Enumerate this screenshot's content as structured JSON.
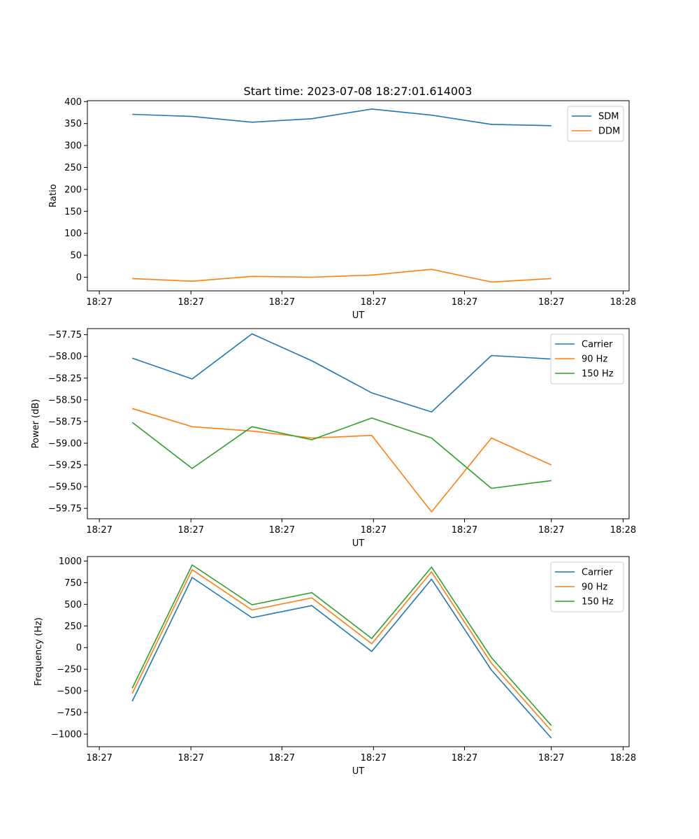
{
  "figure": {
    "title": "Start time: 2023-07-08 18:27:01.614003"
  },
  "colors": {
    "blue": "#1f77b4",
    "orange": "#ff7f0e",
    "green": "#2ca02c"
  },
  "chart_data": [
    {
      "type": "line",
      "title": "Start time: 2023-07-08 18:27:01.614003",
      "xlabel": "UT",
      "ylabel": "Ratio",
      "x": [
        1,
        2,
        3,
        4,
        5,
        6,
        7,
        8
      ],
      "xlim": [
        0.25,
        9.3
      ],
      "x_ticks": [
        0.45,
        1.98,
        3.5,
        5.03,
        6.55,
        8.0,
        9.2
      ],
      "x_tick_labels": [
        "18:27",
        "18:27",
        "18:27",
        "18:27",
        "18:27",
        "18:27",
        "18:28"
      ],
      "ylim": [
        -31,
        402
      ],
      "y_ticks": [
        0,
        50,
        100,
        150,
        200,
        250,
        300,
        350,
        400
      ],
      "y_tick_labels": [
        "0",
        "50",
        "100",
        "150",
        "200",
        "250",
        "300",
        "350",
        "400"
      ],
      "legend_position": "upper-right",
      "series": [
        {
          "name": "SDM",
          "color": "blue",
          "values": [
            371,
            366,
            353,
            361,
            383,
            369,
            348,
            345
          ]
        },
        {
          "name": "DDM",
          "color": "orange",
          "values": [
            -3,
            -9,
            2,
            0,
            5,
            18,
            -11,
            -3
          ]
        }
      ]
    },
    {
      "type": "line",
      "title": "",
      "xlabel": "UT",
      "ylabel": "Power (dB)",
      "x": [
        1,
        2,
        3,
        4,
        5,
        6,
        7,
        8
      ],
      "xlim": [
        0.25,
        9.3
      ],
      "x_ticks": [
        0.45,
        1.98,
        3.5,
        5.03,
        6.55,
        8.0,
        9.2
      ],
      "x_tick_labels": [
        "18:27",
        "18:27",
        "18:27",
        "18:27",
        "18:27",
        "18:27",
        "18:28"
      ],
      "ylim": [
        -59.87,
        -57.68
      ],
      "y_ticks": [
        -59.75,
        -59.5,
        -59.25,
        -59.0,
        -58.75,
        -58.5,
        -58.25,
        -58.0,
        -57.75
      ],
      "y_tick_labels": [
        "−59.75",
        "−59.50",
        "−59.25",
        "−59.00",
        "−58.75",
        "−58.50",
        "−58.25",
        "−58.00",
        "−57.75"
      ],
      "legend_position": "upper-right",
      "series": [
        {
          "name": "Carrier",
          "color": "blue",
          "values": [
            -58.02,
            -58.26,
            -57.74,
            -58.05,
            -58.42,
            -58.64,
            -57.99,
            -58.03
          ]
        },
        {
          "name": "90 Hz",
          "color": "orange",
          "values": [
            -58.6,
            -58.81,
            -58.86,
            -58.94,
            -58.91,
            -59.79,
            -58.94,
            -59.25
          ]
        },
        {
          "name": "150 Hz",
          "color": "green",
          "values": [
            -58.76,
            -59.29,
            -58.81,
            -58.96,
            -58.71,
            -58.94,
            -59.52,
            -59.43
          ]
        }
      ]
    },
    {
      "type": "line",
      "title": "",
      "xlabel": "UT",
      "ylabel": "Frequency (Hz)",
      "x": [
        1,
        2,
        3,
        4,
        5,
        6,
        7,
        8
      ],
      "xlim": [
        0.25,
        9.3
      ],
      "x_ticks": [
        0.45,
        1.98,
        3.5,
        5.03,
        6.55,
        8.0,
        9.2
      ],
      "x_tick_labels": [
        "18:27",
        "18:27",
        "18:27",
        "18:27",
        "18:27",
        "18:27",
        "18:28"
      ],
      "ylim": [
        -1145,
        1052
      ],
      "y_ticks": [
        -1000,
        -750,
        -500,
        -250,
        0,
        250,
        500,
        750,
        1000
      ],
      "y_tick_labels": [
        "−1000",
        "−750",
        "−500",
        "−250",
        "0",
        "250",
        "500",
        "750",
        "1000"
      ],
      "legend_position": "upper-right",
      "series": [
        {
          "name": "Carrier",
          "color": "blue",
          "values": [
            -620,
            810,
            345,
            485,
            -45,
            790,
            -260,
            -1045
          ]
        },
        {
          "name": "90 Hz",
          "color": "orange",
          "values": [
            -530,
            900,
            435,
            575,
            45,
            875,
            -180,
            -960
          ]
        },
        {
          "name": "150 Hz",
          "color": "green",
          "values": [
            -470,
            955,
            495,
            635,
            105,
            930,
            -115,
            -900
          ]
        }
      ]
    }
  ]
}
